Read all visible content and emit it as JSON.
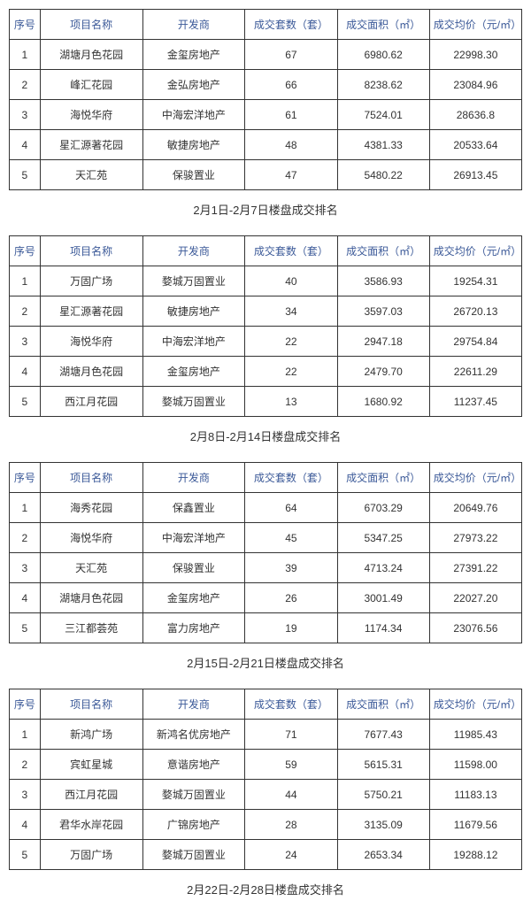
{
  "columns": [
    {
      "key": "seq",
      "label": "序号",
      "class": "col-seq"
    },
    {
      "key": "name",
      "label": "项目名称",
      "class": "col-name"
    },
    {
      "key": "dev",
      "label": "开发商",
      "class": "col-dev"
    },
    {
      "key": "units",
      "label": "成交套数（套）",
      "class": "col-units"
    },
    {
      "key": "area",
      "label": "成交面积（㎡）",
      "class": "col-area"
    },
    {
      "key": "price",
      "label": "成交均价（元/㎡）",
      "class": "col-price"
    }
  ],
  "header_color": "#3b5998",
  "border_color": "#333333",
  "background_color": "#ffffff",
  "cell_text_color": "#333333",
  "header_fontsize": 12,
  "cell_fontsize": 12,
  "caption_fontsize": 13,
  "sections": [
    {
      "caption": "2月1日-2月7日楼盘成交排名",
      "rows": [
        {
          "seq": "1",
          "name": "湖塘月色花园",
          "dev": "金玺房地产",
          "units": "67",
          "area": "6980.62",
          "price": "22998.30"
        },
        {
          "seq": "2",
          "name": "峰汇花园",
          "dev": "金弘房地产",
          "units": "66",
          "area": "8238.62",
          "price": "23084.96"
        },
        {
          "seq": "3",
          "name": "海悦华府",
          "dev": "中海宏洋地产",
          "units": "61",
          "area": "7524.01",
          "price": "28636.8"
        },
        {
          "seq": "4",
          "name": "星汇源著花园",
          "dev": "敏捷房地产",
          "units": "48",
          "area": "4381.33",
          "price": "20533.64"
        },
        {
          "seq": "5",
          "name": "天汇苑",
          "dev": "保骏置业",
          "units": "47",
          "area": "5480.22",
          "price": "26913.45"
        }
      ]
    },
    {
      "caption": "2月8日-2月14日楼盘成交排名",
      "rows": [
        {
          "seq": "1",
          "name": "万固广场",
          "dev": "婺城万固置业",
          "units": "40",
          "area": "3586.93",
          "price": "19254.31"
        },
        {
          "seq": "2",
          "name": "星汇源著花园",
          "dev": "敏捷房地产",
          "units": "34",
          "area": "3597.03",
          "price": "26720.13"
        },
        {
          "seq": "3",
          "name": "海悦华府",
          "dev": "中海宏洋地产",
          "units": "22",
          "area": "2947.18",
          "price": "29754.84"
        },
        {
          "seq": "4",
          "name": "湖塘月色花园",
          "dev": "金玺房地产",
          "units": "22",
          "area": "2479.70",
          "price": "22611.29"
        },
        {
          "seq": "5",
          "name": "西江月花园",
          "dev": "婺城万固置业",
          "units": "13",
          "area": "1680.92",
          "price": "11237.45"
        }
      ]
    },
    {
      "caption": "2月15日-2月21日楼盘成交排名",
      "rows": [
        {
          "seq": "1",
          "name": "海秀花园",
          "dev": "保鑫置业",
          "units": "64",
          "area": "6703.29",
          "price": "20649.76"
        },
        {
          "seq": "2",
          "name": "海悦华府",
          "dev": "中海宏洋地产",
          "units": "45",
          "area": "5347.25",
          "price": "27973.22"
        },
        {
          "seq": "3",
          "name": "天汇苑",
          "dev": "保骏置业",
          "units": "39",
          "area": "4713.24",
          "price": "27391.22"
        },
        {
          "seq": "4",
          "name": "湖塘月色花园",
          "dev": "金玺房地产",
          "units": "26",
          "area": "3001.49",
          "price": "22027.20"
        },
        {
          "seq": "5",
          "name": "三江都荟苑",
          "dev": "富力房地产",
          "units": "19",
          "area": "1174.34",
          "price": "23076.56"
        }
      ]
    },
    {
      "caption": "2月22日-2月28日楼盘成交排名",
      "rows": [
        {
          "seq": "1",
          "name": "新鸿广场",
          "dev": "新鸿名优房地产",
          "units": "71",
          "area": "7677.43",
          "price": "11985.43"
        },
        {
          "seq": "2",
          "name": "宾虹星城",
          "dev": "意谐房地产",
          "units": "59",
          "area": "5615.31",
          "price": "11598.00"
        },
        {
          "seq": "3",
          "name": "西江月花园",
          "dev": "婺城万固置业",
          "units": "44",
          "area": "5750.21",
          "price": "11183.13"
        },
        {
          "seq": "4",
          "name": "君华水岸花园",
          "dev": "广锦房地产",
          "units": "28",
          "area": "3135.09",
          "price": "11679.56"
        },
        {
          "seq": "5",
          "name": "万固广场",
          "dev": "婺城万固置业",
          "units": "24",
          "area": "2653.34",
          "price": "19288.12"
        }
      ]
    }
  ]
}
